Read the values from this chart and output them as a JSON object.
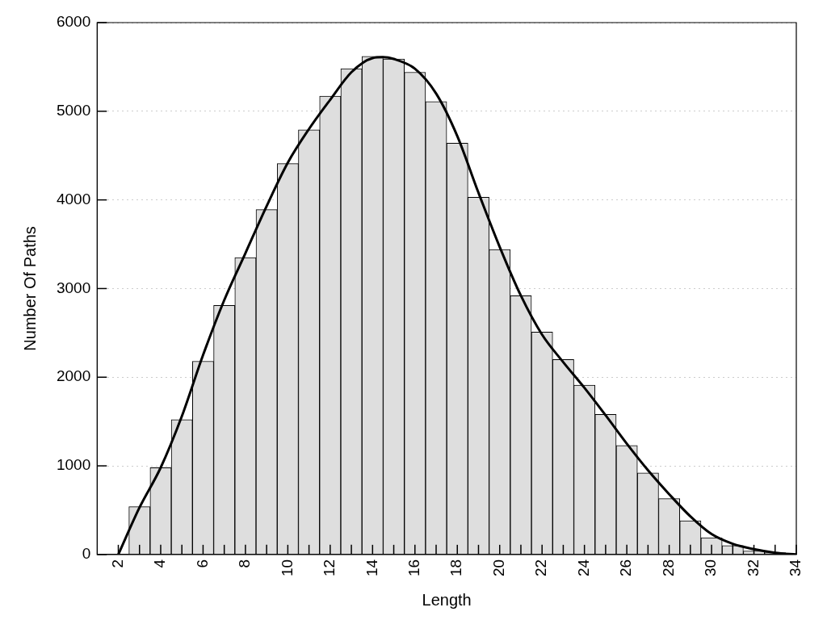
{
  "chart_data": {
    "type": "histogram",
    "xlabel": "Length",
    "ylabel": "Number Of Paths",
    "bins": [
      2.5,
      3.5,
      4.5,
      5.5,
      6.5,
      7.5,
      8.5,
      9.5,
      10.5,
      11.5,
      12.5,
      13.5,
      14.5,
      15.5,
      16.5,
      17.5,
      18.5,
      19.5,
      20.5,
      21.5,
      22.5,
      23.5,
      24.5,
      25.5,
      26.5,
      27.5,
      28.5,
      29.5,
      30.5,
      31.5,
      32.5,
      33.5
    ],
    "values": [
      540,
      980,
      1520,
      2180,
      2810,
      3350,
      3890,
      4410,
      4790,
      5170,
      5480,
      5620,
      5590,
      5440,
      5110,
      4640,
      4030,
      3440,
      2920,
      2510,
      2200,
      1910,
      1580,
      1230,
      920,
      630,
      380,
      190,
      100,
      40,
      20
    ],
    "color": "#dedede",
    "series": [
      {
        "type": "line",
        "color": "#000000",
        "line_style": "solid",
        "marker": "none",
        "x": [
          2,
          3,
          4,
          5,
          6,
          7,
          8,
          9,
          10,
          11,
          12,
          13,
          14,
          14.5,
          15,
          16,
          17,
          18,
          19,
          20,
          21,
          22,
          23,
          24,
          25,
          26,
          27,
          28,
          29,
          30,
          31,
          32,
          33,
          34
        ],
        "values": [
          0,
          530,
          980,
          1560,
          2250,
          2870,
          3400,
          3930,
          4420,
          4800,
          5130,
          5440,
          5600,
          5610,
          5590,
          5480,
          5200,
          4720,
          4080,
          3470,
          2920,
          2480,
          2170,
          1880,
          1570,
          1250,
          950,
          680,
          430,
          230,
          120,
          60,
          20,
          0
        ]
      }
    ],
    "xlim": [
      1,
      34
    ],
    "xticks": [
      {
        "value": 2,
        "label": "2"
      },
      {
        "value": 3,
        "label": null
      },
      {
        "value": 4,
        "label": "4"
      },
      {
        "value": 5,
        "label": null
      },
      {
        "value": 6,
        "label": "6"
      },
      {
        "value": 7,
        "label": null
      },
      {
        "value": 8,
        "label": "8"
      },
      {
        "value": 9,
        "label": null
      },
      {
        "value": 10,
        "label": "10"
      },
      {
        "value": 11,
        "label": null
      },
      {
        "value": 12,
        "label": "12"
      },
      {
        "value": 13,
        "label": null
      },
      {
        "value": 14,
        "label": "14"
      },
      {
        "value": 15,
        "label": null
      },
      {
        "value": 16,
        "label": "16"
      },
      {
        "value": 17,
        "label": null
      },
      {
        "value": 18,
        "label": "18"
      },
      {
        "value": 19,
        "label": null
      },
      {
        "value": 20,
        "label": "20"
      },
      {
        "value": 21,
        "label": null
      },
      {
        "value": 22,
        "label": "22"
      },
      {
        "value": 23,
        "label": null
      },
      {
        "value": 24,
        "label": "24"
      },
      {
        "value": 25,
        "label": null
      },
      {
        "value": 26,
        "label": "26"
      },
      {
        "value": 27,
        "label": null
      },
      {
        "value": 28,
        "label": "28"
      },
      {
        "value": 29,
        "label": null
      },
      {
        "value": 30,
        "label": "30"
      },
      {
        "value": 31,
        "label": null
      },
      {
        "value": 32,
        "label": "32"
      },
      {
        "value": 33,
        "label": null
      },
      {
        "value": 34,
        "label": "34"
      }
    ],
    "ylim": [
      0,
      6000
    ],
    "yticks": [
      0,
      1000,
      2000,
      3000,
      4000,
      5000,
      6000
    ],
    "grid": "y",
    "legend": false
  }
}
